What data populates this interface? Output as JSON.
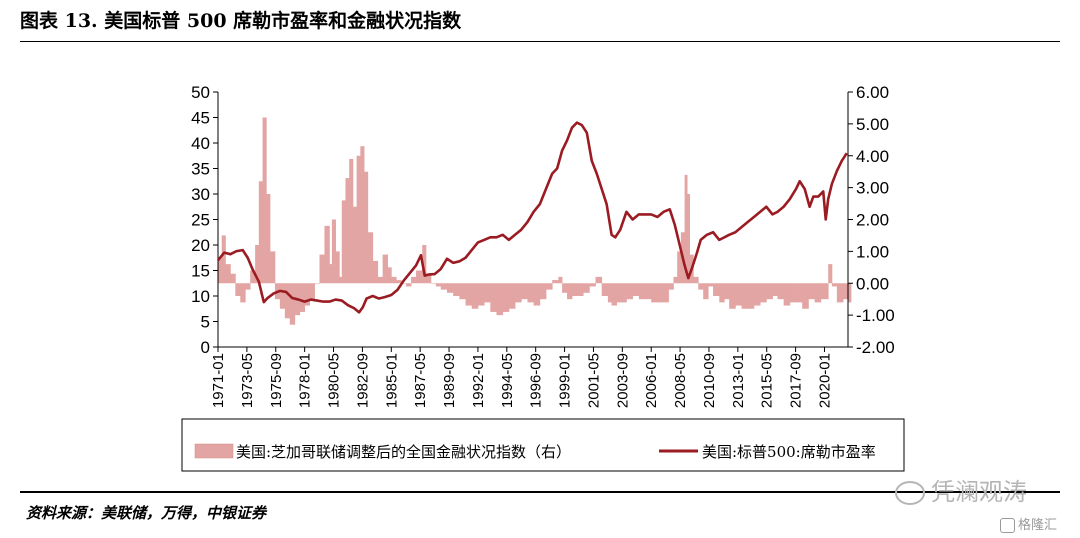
{
  "title": "图表 13. 美国标普 500 席勒市盈率和金融状况指数",
  "source": "资料来源：美联储，万得，中银证券",
  "watermark": "凭澜观涛",
  "watermark2": "格隆汇",
  "colors": {
    "pe_line": "#9B1B22",
    "fci_bar": "#E3A5A3",
    "axis": "#000000"
  },
  "chart_data": {
    "type": "line+bar",
    "x_tick_labels": [
      "1971-01",
      "1973-05",
      "1975-09",
      "1978-01",
      "1980-05",
      "1982-09",
      "1985-01",
      "1987-05",
      "1989-09",
      "1992-01",
      "1994-05",
      "1996-09",
      "1999-01",
      "2001-05",
      "2003-09",
      "2006-01",
      "2008-05",
      "2010-09",
      "2013-01",
      "2015-05",
      "2017-09",
      "2020-01"
    ],
    "x_range": [
      1971.0,
      2021.9
    ],
    "left_axis": {
      "ticks": [
        "0",
        "5",
        "10",
        "15",
        "20",
        "25",
        "30",
        "35",
        "40",
        "45",
        "50"
      ],
      "ylim": [
        0,
        50
      ]
    },
    "right_axis": {
      "ticks": [
        "-2.00",
        "-1.00",
        "0.00",
        "1.00",
        "2.00",
        "3.00",
        "4.00",
        "5.00",
        "6.00"
      ],
      "ylim": [
        -2,
        6
      ]
    },
    "legend": {
      "fci": "美国:芝加哥联储调整后的全国金融状况指数（右）",
      "pe": "美国:标普500:席勒市盈率"
    },
    "series": [
      {
        "name": "美国:芝加哥联储调整后的全国金融状况指数（右）",
        "type": "bar",
        "axis": "right",
        "x": [
          1971.0,
          1971.3,
          1971.6,
          1972.0,
          1972.4,
          1972.8,
          1973.2,
          1973.6,
          1974.0,
          1974.3,
          1974.6,
          1974.9,
          1975.2,
          1975.6,
          1976.0,
          1976.4,
          1976.8,
          1977.2,
          1977.6,
          1978.0,
          1978.4,
          1978.8,
          1979.2,
          1979.6,
          1980.0,
          1980.2,
          1980.5,
          1980.8,
          1981.0,
          1981.3,
          1981.6,
          1981.9,
          1982.2,
          1982.5,
          1982.8,
          1983.1,
          1983.5,
          1983.9,
          1984.3,
          1984.7,
          1985.0,
          1985.4,
          1985.8,
          1986.2,
          1986.6,
          1987.0,
          1987.5,
          1987.8,
          1988.2,
          1988.6,
          1989.0,
          1989.5,
          1990.0,
          1990.5,
          1991.0,
          1991.5,
          1992.0,
          1992.5,
          1993.0,
          1993.5,
          1994.0,
          1994.5,
          1995.0,
          1995.5,
          1996.0,
          1996.5,
          1997.0,
          1997.5,
          1998.0,
          1998.5,
          1998.8,
          1999.2,
          1999.6,
          2000.0,
          2000.5,
          2001.0,
          2001.5,
          2002.0,
          2002.5,
          2002.8,
          2003.2,
          2003.6,
          2004.0,
          2004.5,
          2005.0,
          2005.5,
          2006.0,
          2006.5,
          2007.0,
          2007.4,
          2007.8,
          2008.1,
          2008.4,
          2008.7,
          2008.9,
          2009.1,
          2009.4,
          2009.8,
          2010.2,
          2010.6,
          2011.0,
          2011.5,
          2011.9,
          2012.3,
          2012.8,
          2013.3,
          2013.8,
          2014.3,
          2014.8,
          2015.3,
          2015.8,
          2016.2,
          2016.7,
          2017.2,
          2017.7,
          2018.2,
          2018.7,
          2019.2,
          2019.7,
          2020.1,
          2020.3,
          2020.6,
          2021.0,
          2021.5,
          2021.9
        ],
        "values": [
          0.8,
          1.5,
          0.6,
          0.3,
          -0.4,
          -0.6,
          -0.2,
          0.4,
          1.2,
          3.2,
          5.2,
          2.8,
          1.0,
          -0.5,
          -0.8,
          -1.1,
          -1.3,
          -1.0,
          -0.9,
          -0.7,
          -0.5,
          0.0,
          0.9,
          1.8,
          0.6,
          2.0,
          1.0,
          0.2,
          2.6,
          3.3,
          3.9,
          2.4,
          4.0,
          4.3,
          3.5,
          1.6,
          0.7,
          0.2,
          0.9,
          0.5,
          0.2,
          0.1,
          0.0,
          -0.1,
          0.2,
          0.4,
          1.2,
          0.3,
          0.0,
          -0.1,
          -0.2,
          -0.3,
          -0.4,
          -0.5,
          -0.7,
          -0.8,
          -0.7,
          -0.6,
          -0.9,
          -1.0,
          -0.9,
          -0.8,
          -0.6,
          -0.5,
          -0.6,
          -0.7,
          -0.5,
          -0.2,
          0.1,
          0.2,
          -0.3,
          -0.5,
          -0.4,
          -0.4,
          -0.3,
          -0.1,
          0.2,
          -0.4,
          -0.6,
          -0.7,
          -0.6,
          -0.6,
          -0.5,
          -0.4,
          -0.5,
          -0.5,
          -0.6,
          -0.6,
          -0.6,
          -0.2,
          0.2,
          1.0,
          1.6,
          3.4,
          2.8,
          0.9,
          0.2,
          -0.2,
          -0.5,
          -0.1,
          -0.4,
          -0.6,
          -0.5,
          -0.8,
          -0.7,
          -0.8,
          -0.8,
          -0.7,
          -0.6,
          -0.5,
          -0.4,
          -0.5,
          -0.7,
          -0.6,
          -0.6,
          -0.8,
          -0.5,
          -0.6,
          -0.5,
          -0.5,
          0.6,
          -0.1,
          -0.6,
          -0.5,
          -0.6
        ]
      },
      {
        "name": "美国:标普500:席勒市盈率",
        "type": "line",
        "axis": "left",
        "x": [
          1971.0,
          1971.5,
          1972.0,
          1972.5,
          1973.0,
          1973.4,
          1973.8,
          1974.3,
          1974.7,
          1975.0,
          1975.5,
          1976.0,
          1976.5,
          1977.0,
          1977.5,
          1978.0,
          1978.5,
          1979.0,
          1979.5,
          1980.0,
          1980.5,
          1981.0,
          1981.5,
          1982.0,
          1982.4,
          1982.7,
          1983.0,
          1983.5,
          1984.0,
          1984.5,
          1985.0,
          1985.5,
          1986.0,
          1986.5,
          1987.0,
          1987.4,
          1987.7,
          1988.0,
          1988.5,
          1989.0,
          1989.5,
          1990.0,
          1990.5,
          1991.0,
          1991.5,
          1992.0,
          1992.5,
          1993.0,
          1993.5,
          1994.0,
          1994.5,
          1995.0,
          1995.5,
          1996.0,
          1996.5,
          1997.0,
          1997.5,
          1998.0,
          1998.4,
          1998.8,
          1999.2,
          1999.6,
          2000.0,
          2000.4,
          2000.8,
          2001.2,
          2001.6,
          2002.0,
          2002.4,
          2002.8,
          2003.1,
          2003.5,
          2004.0,
          2004.5,
          2005.0,
          2005.5,
          2006.0,
          2006.5,
          2007.0,
          2007.5,
          2007.9,
          2008.3,
          2008.7,
          2009.0,
          2009.3,
          2009.7,
          2010.0,
          2010.5,
          2011.0,
          2011.5,
          2011.9,
          2012.3,
          2012.8,
          2013.3,
          2013.8,
          2014.3,
          2014.8,
          2015.3,
          2015.8,
          2016.2,
          2016.7,
          2017.2,
          2017.7,
          2018.0,
          2018.4,
          2018.8,
          2019.1,
          2019.5,
          2019.9,
          2020.1,
          2020.3,
          2020.6,
          2021.0,
          2021.4,
          2021.8
        ],
        "values": [
          17.0,
          18.5,
          18.2,
          18.8,
          19.0,
          17.5,
          15.2,
          12.8,
          8.8,
          9.6,
          10.5,
          11.0,
          10.8,
          9.6,
          9.3,
          8.9,
          9.3,
          9.1,
          8.9,
          8.9,
          9.3,
          9.1,
          8.2,
          7.6,
          6.8,
          7.8,
          9.5,
          10.0,
          9.5,
          9.8,
          10.2,
          11.2,
          13.0,
          14.5,
          16.0,
          18.0,
          14.0,
          14.2,
          14.3,
          15.3,
          17.3,
          16.5,
          16.8,
          17.5,
          19.0,
          20.5,
          21.0,
          21.5,
          21.5,
          22.0,
          21.0,
          22.0,
          23.0,
          24.5,
          26.5,
          28.0,
          31.0,
          34.0,
          35.0,
          38.5,
          40.5,
          43.0,
          44.0,
          43.5,
          42.0,
          36.5,
          34.0,
          31.0,
          28.0,
          22.0,
          21.5,
          23.0,
          26.5,
          25.0,
          26.0,
          26.0,
          26.0,
          25.5,
          26.5,
          27.0,
          24.0,
          20.0,
          16.0,
          13.5,
          15.5,
          18.5,
          21.0,
          22.0,
          22.5,
          21.0,
          21.5,
          22.0,
          22.5,
          23.5,
          24.5,
          25.5,
          26.5,
          27.5,
          26.0,
          26.5,
          27.5,
          29.0,
          31.0,
          32.5,
          31.0,
          27.5,
          29.5,
          29.5,
          30.5,
          25.0,
          29.0,
          32.0,
          34.5,
          36.5,
          38.0
        ]
      }
    ]
  }
}
